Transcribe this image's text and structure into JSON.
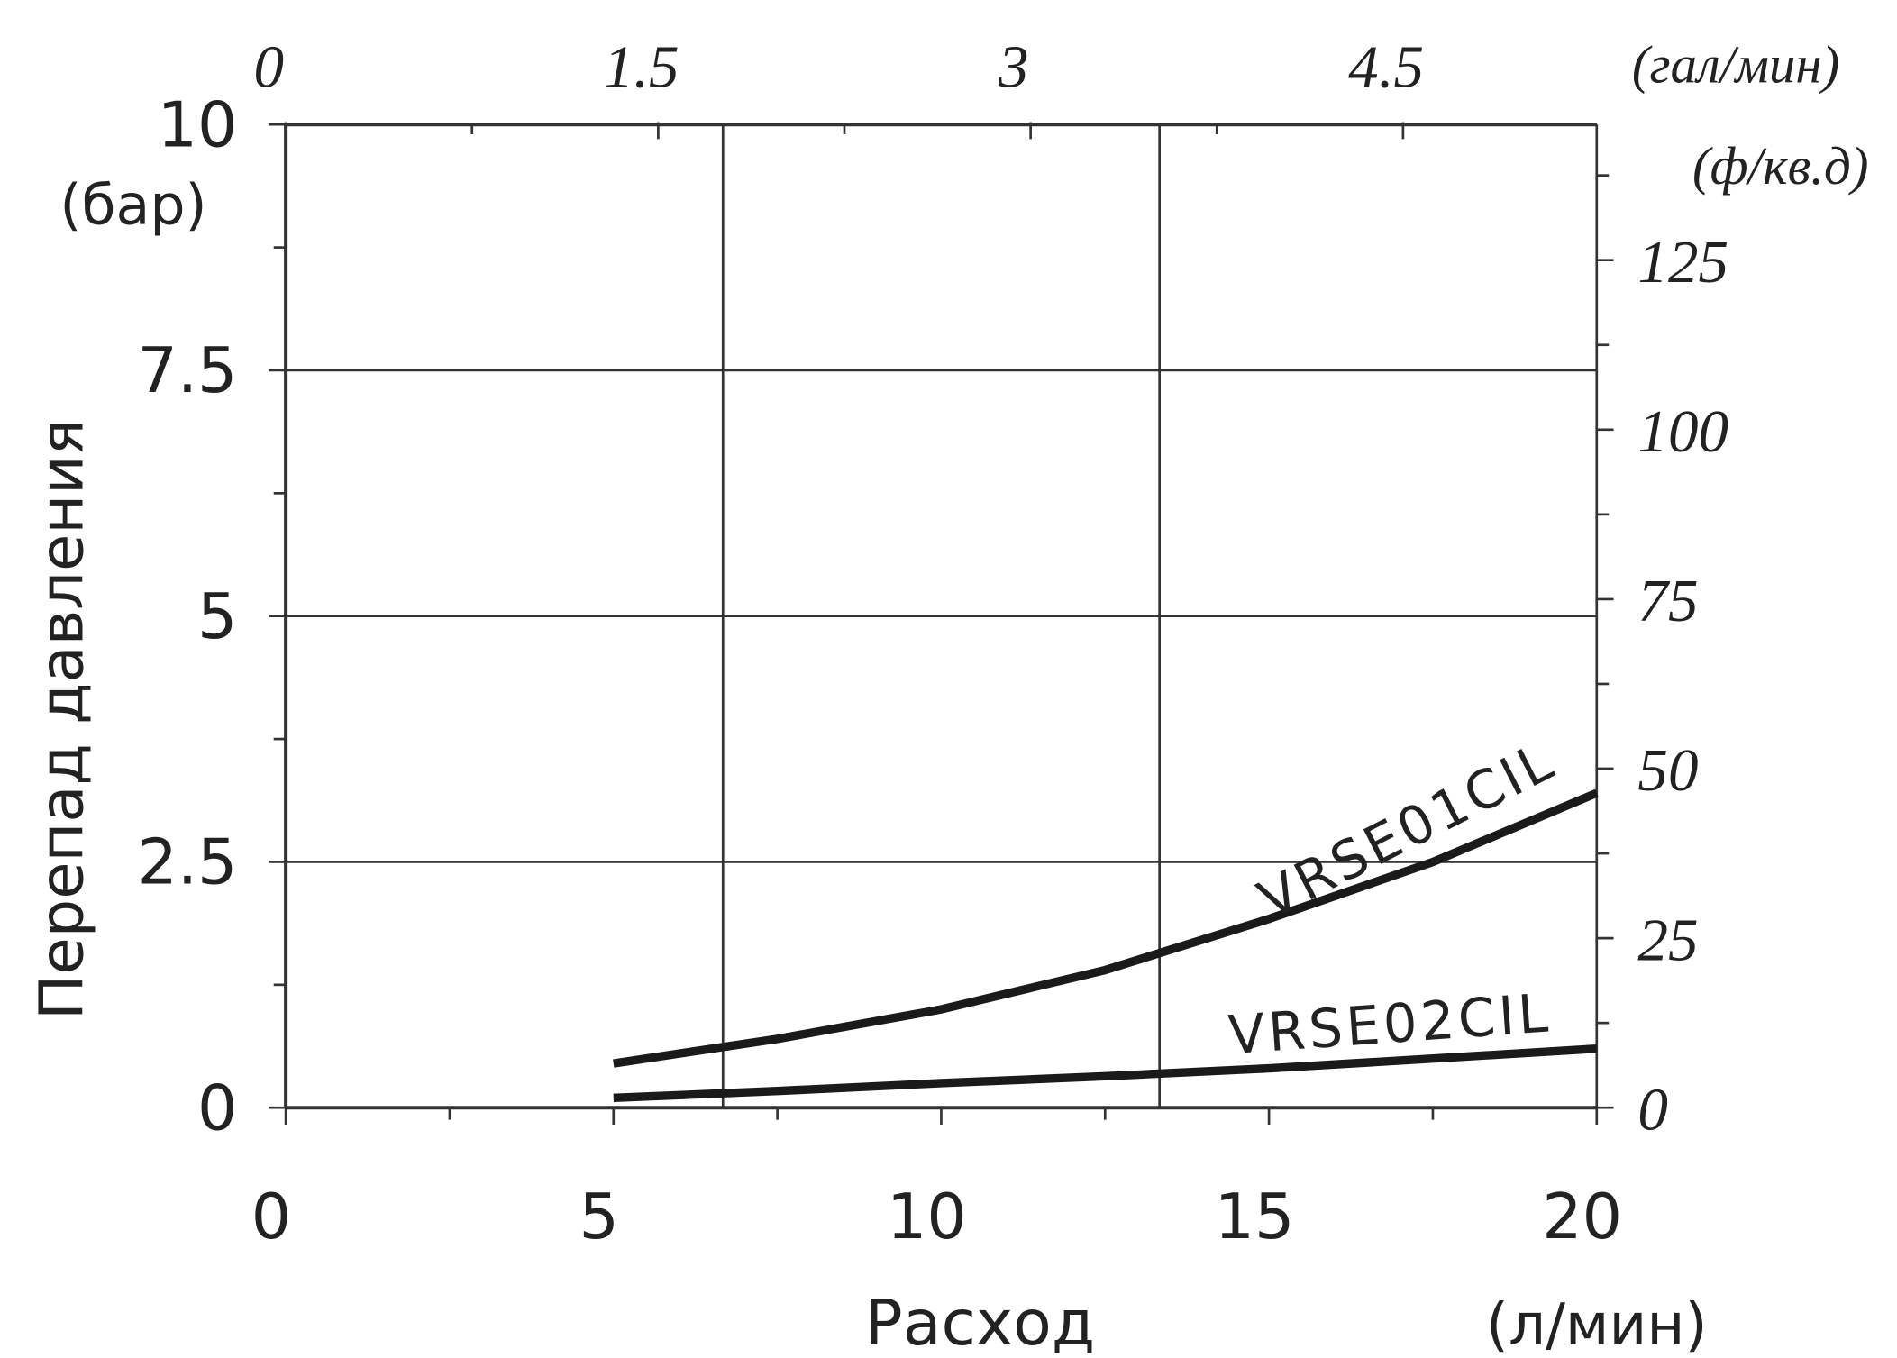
{
  "chart_data": {
    "type": "line",
    "x_title": "Расход",
    "x_unit": "(л/мин)",
    "y_title": "Перепад давления",
    "y_unit": "(бар)",
    "x2_unit": "(гал/мин)",
    "y2_unit": "(ф/кв.д)",
    "x": [
      5,
      7.5,
      10,
      12.5,
      15,
      17.5,
      20
    ],
    "series": [
      {
        "name": "VRSE01CIL",
        "color": "#1a1a1a",
        "values": [
          0.45,
          0.7,
          1.0,
          1.4,
          1.92,
          2.5,
          3.2
        ]
      },
      {
        "name": "VRSE02CIL",
        "color": "#1a1a1a",
        "values": [
          0.1,
          0.17,
          0.25,
          0.32,
          0.4,
          0.5,
          0.6
        ]
      }
    ],
    "xlim": [
      0,
      20
    ],
    "xticks": [
      0,
      5,
      10,
      15,
      20
    ],
    "x_minor_ticks": [
      2.5,
      7.5,
      12.5,
      17.5
    ],
    "x_gridlines": [
      6.67,
      13.33
    ],
    "ylim": [
      0,
      10
    ],
    "yticks": [
      0,
      2.5,
      5,
      7.5,
      10
    ],
    "y_minor_ticks": [
      1.25,
      3.75,
      6.25,
      8.75
    ],
    "x2lim": [
      0,
      5.28
    ],
    "x2ticks": [
      0,
      1.5,
      3,
      4.5
    ],
    "x2_minor_ticks": [
      0.75,
      2.25,
      3.75
    ],
    "y2lim": [
      0,
      145
    ],
    "y2ticks": [
      0,
      25,
      50,
      75,
      100,
      125
    ],
    "y2_minor_ticks": [
      12.5,
      37.5,
      62.5,
      87.5,
      112.5,
      137.5
    ],
    "grid": true
  }
}
